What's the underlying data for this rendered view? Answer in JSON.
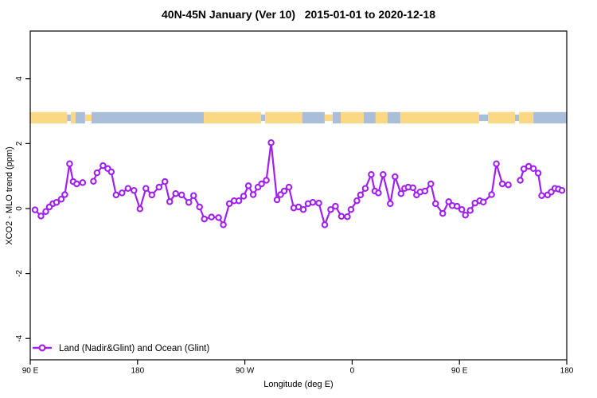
{
  "title": "40N-45N January (Ver 10)   2015-01-01 to 2020-12-18",
  "legend": {
    "label": "Land (Nadir&Glint) and Ocean (Glint)",
    "marker": "open-circle",
    "color": "#A020F0"
  },
  "axes": {
    "x": {
      "title": "Longitude (deg E)",
      "tick_labels": [
        "90 E",
        "180",
        "90 W",
        "0",
        "90 E",
        "180"
      ]
    },
    "y": {
      "title": "XCO2 - MLO trend (ppm)",
      "tick_labels": [
        "4",
        "2",
        "0",
        "-2",
        "-4"
      ]
    }
  },
  "colors": {
    "series": "#A020F0",
    "marker_fill": "#FFFFFF",
    "land": "#FAD884",
    "ocean": "#A9BED9",
    "axis": "#000000",
    "background": "#FFFFFF"
  },
  "chart_data": {
    "type": "line",
    "title": "40N-45N January (Ver 10)   2015-01-01 to 2020-12-18",
    "xlabel": "Longitude (deg E)",
    "ylabel": "XCO2 - MLO trend (ppm)",
    "x_unit": "degrees eastward from 90E; axis wraps 450 deg total (90E,180,90W,0,90E,180)",
    "x_axis_span_deg": 450,
    "x_ticks": [
      {
        "d": 0,
        "label": "90 E"
      },
      {
        "d": 90,
        "label": "180"
      },
      {
        "d": 180,
        "label": "90 W"
      },
      {
        "d": 270,
        "label": "0"
      },
      {
        "d": 360,
        "label": "90 E"
      },
      {
        "d": 450,
        "label": "180"
      }
    ],
    "y_ticks": [
      {
        "v": 4,
        "label": "4"
      },
      {
        "v": 2,
        "label": "2"
      },
      {
        "v": 0,
        "label": "0"
      },
      {
        "v": -2,
        "label": "-2"
      },
      {
        "v": -4,
        "label": "-4"
      }
    ],
    "ylim": [
      -4.66,
      5.47
    ],
    "grid": false,
    "legend_position": "bottom-left-inside",
    "gap_threshold_deg": 8,
    "series": [
      {
        "name": "Land (Nadir&Glint) and Ocean (Glint)",
        "marker": "open-circle",
        "color": "#A020F0",
        "points": [
          [
            4,
            -0.04
          ],
          [
            9,
            -0.23
          ],
          [
            13,
            -0.09
          ],
          [
            16,
            0.05
          ],
          [
            19,
            0.15
          ],
          [
            22,
            0.19
          ],
          [
            26,
            0.29
          ],
          [
            29,
            0.43
          ],
          [
            33,
            1.38
          ],
          [
            36,
            0.83
          ],
          [
            39,
            0.76
          ],
          [
            44,
            0.8
          ],
          [
            53,
            0.84
          ],
          [
            56,
            1.1
          ],
          [
            61,
            1.32
          ],
          [
            65,
            1.23
          ],
          [
            68,
            1.13
          ],
          [
            72,
            0.42
          ],
          [
            77,
            0.48
          ],
          [
            82,
            0.62
          ],
          [
            87,
            0.56
          ],
          [
            92,
            -0.01
          ],
          [
            97,
            0.62
          ],
          [
            102,
            0.42
          ],
          [
            108,
            0.66
          ],
          [
            113,
            0.83
          ],
          [
            117,
            0.21
          ],
          [
            122,
            0.46
          ],
          [
            127,
            0.42
          ],
          [
            133,
            0.19
          ],
          [
            137,
            0.4
          ],
          [
            142,
            0.05
          ],
          [
            146,
            -0.32
          ],
          [
            152,
            -0.26
          ],
          [
            158,
            -0.28
          ],
          [
            162,
            -0.5
          ],
          [
            167,
            0.15
          ],
          [
            171,
            0.24
          ],
          [
            175,
            0.24
          ],
          [
            179,
            0.38
          ],
          [
            183,
            0.7
          ],
          [
            187,
            0.43
          ],
          [
            191,
            0.66
          ],
          [
            194,
            0.76
          ],
          [
            198,
            0.87
          ],
          [
            202,
            2.03
          ],
          [
            207,
            0.27
          ],
          [
            210,
            0.43
          ],
          [
            213,
            0.54
          ],
          [
            217,
            0.66
          ],
          [
            221,
            0.02
          ],
          [
            225,
            0.05
          ],
          [
            229,
            -0.03
          ],
          [
            233,
            0.15
          ],
          [
            237,
            0.19
          ],
          [
            242,
            0.17
          ],
          [
            247,
            -0.5
          ],
          [
            252,
            -0.03
          ],
          [
            256,
            0.07
          ],
          [
            261,
            -0.24
          ],
          [
            266,
            -0.25
          ],
          [
            269,
            -0.03
          ],
          [
            274,
            0.24
          ],
          [
            277,
            0.42
          ],
          [
            281,
            0.62
          ],
          [
            286,
            1.05
          ],
          [
            289,
            0.54
          ],
          [
            292,
            0.48
          ],
          [
            296,
            1.05
          ],
          [
            302,
            0.15
          ],
          [
            306,
            0.98
          ],
          [
            311,
            0.46
          ],
          [
            314,
            0.62
          ],
          [
            317,
            0.66
          ],
          [
            321,
            0.64
          ],
          [
            324,
            0.42
          ],
          [
            327,
            0.51
          ],
          [
            331,
            0.54
          ],
          [
            336,
            0.76
          ],
          [
            340,
            0.15
          ],
          [
            346,
            -0.15
          ],
          [
            351,
            0.21
          ],
          [
            354,
            0.09
          ],
          [
            358,
            0.07
          ],
          [
            362,
            -0.03
          ],
          [
            365,
            -0.2
          ],
          [
            369,
            -0.06
          ],
          [
            373,
            0.17
          ],
          [
            377,
            0.24
          ],
          [
            380,
            0.2
          ],
          [
            387,
            0.43
          ],
          [
            391,
            1.38
          ],
          [
            396,
            0.76
          ],
          [
            401,
            0.73
          ],
          [
            411,
            0.87
          ],
          [
            414,
            1.22
          ],
          [
            418,
            1.3
          ],
          [
            422,
            1.23
          ],
          [
            426,
            1.09
          ],
          [
            429,
            0.4
          ],
          [
            434,
            0.42
          ],
          [
            437,
            0.51
          ],
          [
            440,
            0.62
          ],
          [
            443,
            0.6
          ],
          [
            446,
            0.56
          ]
        ]
      }
    ],
    "map_band": {
      "description": "land/ocean world strip for 40N-45N drawn across the plot",
      "band_y_ppm": [
        2.62,
        2.97
      ],
      "segments": [
        {
          "d0": 0,
          "d1": 31,
          "type": "land"
        },
        {
          "d0": 31,
          "d1": 34,
          "type": "ocean",
          "partial": true
        },
        {
          "d0": 34,
          "d1": 38,
          "type": "land"
        },
        {
          "d0": 38,
          "d1": 46,
          "type": "ocean"
        },
        {
          "d0": 46,
          "d1": 51.4,
          "type": "land",
          "partial": true
        },
        {
          "d0": 51.4,
          "d1": 145.6,
          "type": "ocean"
        },
        {
          "d0": 145.6,
          "d1": 193.6,
          "type": "land"
        },
        {
          "d0": 193.6,
          "d1": 197,
          "type": "ocean",
          "partial": true
        },
        {
          "d0": 197,
          "d1": 228.3,
          "type": "land"
        },
        {
          "d0": 228.3,
          "d1": 247,
          "type": "ocean"
        },
        {
          "d0": 247,
          "d1": 253.7,
          "type": "land",
          "partial": true
        },
        {
          "d0": 253.7,
          "d1": 260.4,
          "type": "ocean"
        },
        {
          "d0": 260.4,
          "d1": 279.7,
          "type": "land"
        },
        {
          "d0": 279.7,
          "d1": 289.7,
          "type": "ocean"
        },
        {
          "d0": 289.7,
          "d1": 299.7,
          "type": "land"
        },
        {
          "d0": 299.7,
          "d1": 310.4,
          "type": "ocean"
        },
        {
          "d0": 310.4,
          "d1": 376.5,
          "type": "land"
        },
        {
          "d0": 376.5,
          "d1": 383.9,
          "type": "ocean",
          "partial": true
        },
        {
          "d0": 383.9,
          "d1": 406.6,
          "type": "land"
        },
        {
          "d0": 406.6,
          "d1": 410,
          "type": "ocean",
          "partial": true
        },
        {
          "d0": 410,
          "d1": 422,
          "type": "land"
        },
        {
          "d0": 422,
          "d1": 450,
          "type": "ocean"
        }
      ]
    }
  }
}
